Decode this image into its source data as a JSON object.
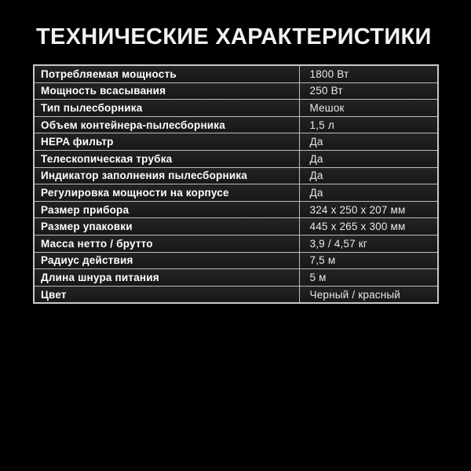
{
  "title": "ТЕХНИЧЕСКИЕ ХАРАКТЕРИСТИКИ",
  "colors": {
    "background": "#000000",
    "cell_background": "#1d1d1d",
    "border": "#bcbcbc",
    "title_text": "#f2f2f2",
    "label_text": "#ffffff",
    "value_text": "#e9e9e9"
  },
  "table": {
    "columns": [
      "characteristic",
      "value"
    ],
    "rows": [
      {
        "label": "Потребляемая мощность",
        "value": "1800 Вт"
      },
      {
        "label": "Мощность всасывания",
        "value": "250 Вт"
      },
      {
        "label": "Тип пылесборника",
        "value": "Мешок"
      },
      {
        "label": "Объем контейнера-пылесборника",
        "value": "1,5 л"
      },
      {
        "label": "HEPA фильтр",
        "value": "Да"
      },
      {
        "label": "Телескопическая трубка",
        "value": "Да"
      },
      {
        "label": "Индикатор заполнения пылесборника",
        "value": "Да"
      },
      {
        "label": "Регулировка мощности на корпусе",
        "value": "Да"
      },
      {
        "label": "Размер прибора",
        "value": "324 х 250 х 207 мм"
      },
      {
        "label": "Размер упаковки",
        "value": "445 х 265 х 300 мм"
      },
      {
        "label": "Масса нетто / брутто",
        "value": "3,9 / 4,57 кг"
      },
      {
        "label": "Радиус действия",
        "value": "7,5 м"
      },
      {
        "label": "Длина шнура питания",
        "value": "5 м"
      },
      {
        "label": "Цвет",
        "value": "Черный / красный"
      }
    ]
  }
}
